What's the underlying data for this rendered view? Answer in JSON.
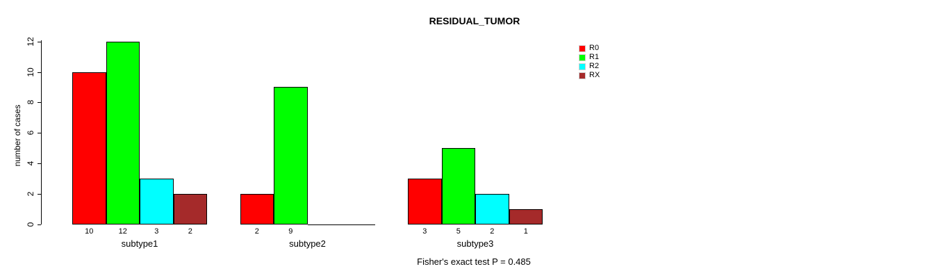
{
  "chart_data": {
    "type": "bar",
    "title": "RESIDUAL_TUMOR",
    "ylabel": "number of cases",
    "xlabel": "",
    "categories": [
      "subtype1",
      "subtype2",
      "subtype3"
    ],
    "series": [
      {
        "name": "R0",
        "color": "#FF0000",
        "values": [
          10,
          2,
          3
        ]
      },
      {
        "name": "R1",
        "color": "#00FF00",
        "values": [
          12,
          9,
          5
        ]
      },
      {
        "name": "R2",
        "color": "#00FFFF",
        "values": [
          3,
          0,
          2
        ]
      },
      {
        "name": "RX",
        "color": "#A52A2A",
        "values": [
          2,
          0,
          1
        ]
      }
    ],
    "ylim": [
      0,
      12
    ],
    "yticks": [
      0,
      2,
      4,
      6,
      8,
      10,
      12
    ],
    "grid": false,
    "legend_position": "right",
    "bar_value_labels_shown": true,
    "note": "Fisher's exact test P = 0.485"
  }
}
